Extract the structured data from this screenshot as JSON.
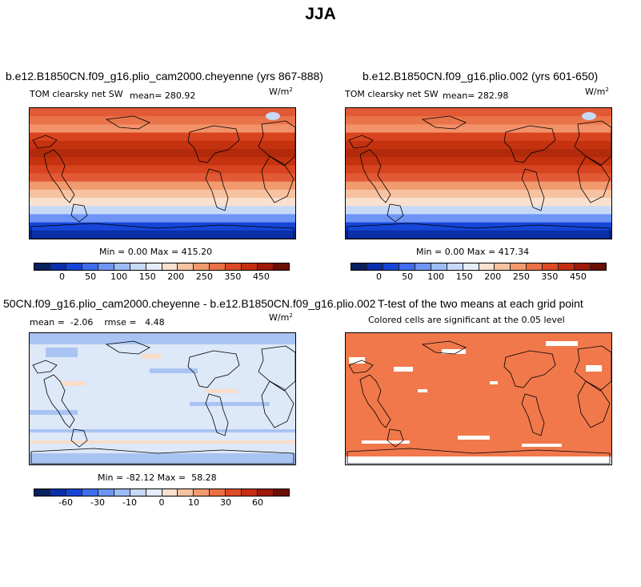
{
  "figure_title": "JJA",
  "panels": [
    {
      "title": "b.e12.B1850CN.f09_g16.plio_cam2000.cheyenne (yrs 867-888)",
      "variable": "TOM clearsky net SW",
      "stat_text": "mean= 280.92",
      "units": "W/m",
      "units_exp": "2",
      "minmax_text": "Min =   0.00 Max = 415.20"
    },
    {
      "title": "b.e12.B1850CN.f09_g16.plio.002 (yrs 601-650)",
      "variable": "TOM clearsky net SW",
      "stat_text": "mean= 282.98",
      "units": "W/m",
      "units_exp": "2",
      "minmax_text": "Min =   0.00 Max = 417.34"
    },
    {
      "title": "50CN.f09_g16.plio_cam2000.cheyenne - b.e12.B1850CN.f09_g16.plio.002",
      "stat_text": "mean =  -2.06    rmse =   4.48",
      "units": "W/m",
      "units_exp": "2",
      "minmax_text": "Min = -82.12 Max =  58.28"
    },
    {
      "title": "T-test of the two means at each grid point",
      "subtitle": "Colored cells are significant at the 0.05 level"
    }
  ],
  "colorbars": {
    "absolute": {
      "ticks": [
        "0",
        "50",
        "100",
        "150",
        "200",
        "250",
        "350",
        "450"
      ],
      "colors": [
        "#08215f",
        "#0a2fa8",
        "#1646d8",
        "#3f6cf0",
        "#6e95f5",
        "#9dbcf6",
        "#c6d9f7",
        "#e4edf8",
        "#f9e0cf",
        "#f7c2a0",
        "#f19a6e",
        "#ea7045",
        "#dd4a25",
        "#c52e12",
        "#9d1a08",
        "#6b0f05"
      ]
    },
    "difference": {
      "ticks": [
        "-60",
        "-30",
        "-10",
        "0",
        "10",
        "30",
        "60"
      ],
      "colors": [
        "#08215f",
        "#0a2fa8",
        "#1646d8",
        "#3f6cf0",
        "#6e95f5",
        "#9dbcf6",
        "#c6d9f7",
        "#e4edf8",
        "#f9e0cf",
        "#f7c2a0",
        "#f19a6e",
        "#ea7045",
        "#dd4a25",
        "#c52e12",
        "#9d1a08",
        "#6b0f05"
      ]
    }
  },
  "map_colors": {
    "abs_bands": [
      "#e25a35",
      "#ea7449",
      "#f2926a",
      "#d8441f",
      "#c43210",
      "#b12a0c",
      "#c43210",
      "#d8441f",
      "#e25a35",
      "#f19a6e",
      "#f7c2a0",
      "#f9e0cf",
      "#c6d9f7",
      "#6e95f5",
      "#1646d8",
      "#0a2fa8"
    ],
    "diff_bg": "#dde8f8",
    "diff_patch_blue": "#a9c4f2",
    "diff_patch_orange": "#f9ddc8",
    "ttest_fill": "#f0784a"
  }
}
